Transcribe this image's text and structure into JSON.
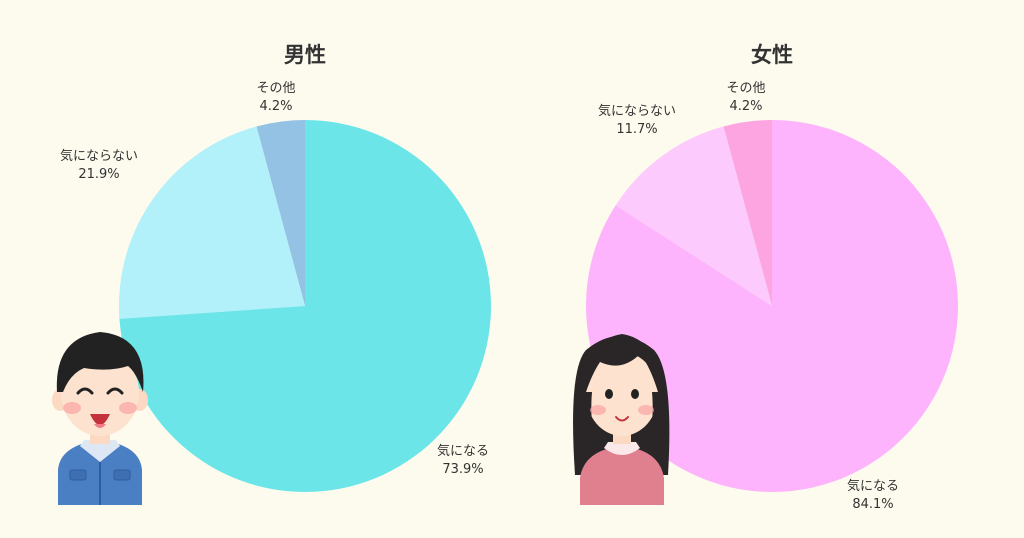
{
  "chart_data": [
    {
      "type": "pie",
      "title": "男性",
      "slices": [
        {
          "label": "気になる",
          "value": 73.9,
          "display": "73.9%",
          "color": "#6ce5e8"
        },
        {
          "label": "気にならない",
          "value": 21.9,
          "display": "21.9%",
          "color": "#b2f0fa"
        },
        {
          "label": "その他",
          "value": 4.2,
          "display": "4.2%",
          "color": "#94c2e4"
        }
      ]
    },
    {
      "type": "pie",
      "title": "女性",
      "slices": [
        {
          "label": "気になる",
          "value": 84.1,
          "display": "84.1%",
          "color": "#fdb4fc"
        },
        {
          "label": "気にならない",
          "value": 11.7,
          "display": "11.7%",
          "color": "#fccafd"
        },
        {
          "label": "その他",
          "value": 4.2,
          "display": "4.2%",
          "color": "#fda5e1"
        }
      ]
    }
  ],
  "colors": {
    "background": "#fdfbee",
    "text": "#333333"
  },
  "illustrations": [
    "man-illustration",
    "woman-illustration"
  ]
}
